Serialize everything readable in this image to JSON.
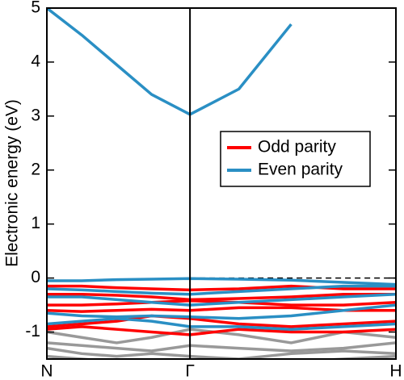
{
  "chart_data": {
    "type": "line",
    "ylabel": "Electronic energy (eV)",
    "x": [
      0,
      0.1,
      0.2,
      0.3,
      0.41,
      0.55,
      0.7,
      0.85,
      1.0
    ],
    "xlim": [
      0,
      1
    ],
    "xticks": [
      {
        "value": 0,
        "label": "N"
      },
      {
        "value": 0.41,
        "label": "Γ"
      },
      {
        "value": 1,
        "label": "H"
      }
    ],
    "ylim": [
      -1.5,
      5
    ],
    "yticks": [
      -1,
      0,
      1,
      2,
      3,
      4,
      5
    ],
    "legend": "right",
    "reference_line": {
      "value": 0,
      "style": "dashed",
      "from_x": 0.41
    },
    "series": [
      {
        "color": "#999999",
        "bands": [
          [
            -1.0,
            -1.1,
            -1.2,
            -1.1,
            -0.95,
            -1.05,
            -1.2,
            -1.0,
            -1.1
          ],
          [
            -1.2,
            -1.25,
            -1.3,
            -1.35,
            -1.25,
            -1.3,
            -1.35,
            -1.3,
            -1.2
          ],
          [
            -1.3,
            -1.4,
            -1.45,
            -1.4,
            -1.45,
            -1.5,
            -1.4,
            -1.35,
            -1.4
          ],
          [
            -1.45,
            -1.5,
            -1.55,
            -1.6,
            -1.55,
            -1.6,
            -1.55,
            -1.5,
            -1.45
          ]
        ]
      },
      {
        "name": "Odd parity",
        "color": "#ff0000",
        "bands": [
          [
            -0.15,
            -0.15,
            -0.18,
            -0.2,
            -0.22,
            -0.2,
            -0.15,
            -0.2,
            -0.2
          ],
          [
            -0.3,
            -0.3,
            -0.32,
            -0.35,
            -0.4,
            -0.38,
            -0.35,
            -0.3,
            -0.3
          ],
          [
            -0.5,
            -0.5,
            -0.48,
            -0.45,
            -0.42,
            -0.45,
            -0.5,
            -0.5,
            -0.45
          ],
          [
            -0.6,
            -0.62,
            -0.6,
            -0.58,
            -0.6,
            -0.55,
            -0.55,
            -0.6,
            -0.6
          ],
          [
            -0.9,
            -0.85,
            -0.8,
            -0.7,
            -0.75,
            -0.85,
            -0.9,
            -0.85,
            -0.8
          ],
          [
            -0.95,
            -0.9,
            -0.95,
            -1.0,
            -1.05,
            -0.95,
            -1.0,
            -1.0,
            -0.95
          ]
        ]
      },
      {
        "name": "Even parity",
        "color": "#2a8fc4",
        "bands": [
          [
            5.0,
            4.5,
            3.95,
            3.4,
            3.03,
            3.5,
            4.7,
            null,
            null
          ],
          [
            -0.05,
            -0.05,
            -0.03,
            -0.02,
            -0.01,
            -0.02,
            -0.04,
            -0.08,
            -0.12
          ],
          [
            -0.2,
            -0.22,
            -0.25,
            -0.28,
            -0.3,
            -0.25,
            -0.2,
            -0.15,
            -0.15
          ],
          [
            -0.35,
            -0.35,
            -0.4,
            -0.45,
            -0.5,
            -0.45,
            -0.4,
            -0.35,
            -0.3
          ],
          [
            -0.65,
            -0.7,
            -0.72,
            -0.7,
            -0.72,
            -0.75,
            -0.7,
            -0.6,
            -0.5
          ],
          [
            -0.85,
            -0.8,
            -0.75,
            -0.8,
            -0.9,
            -0.9,
            -0.95,
            -0.9,
            -0.85
          ]
        ]
      }
    ]
  }
}
